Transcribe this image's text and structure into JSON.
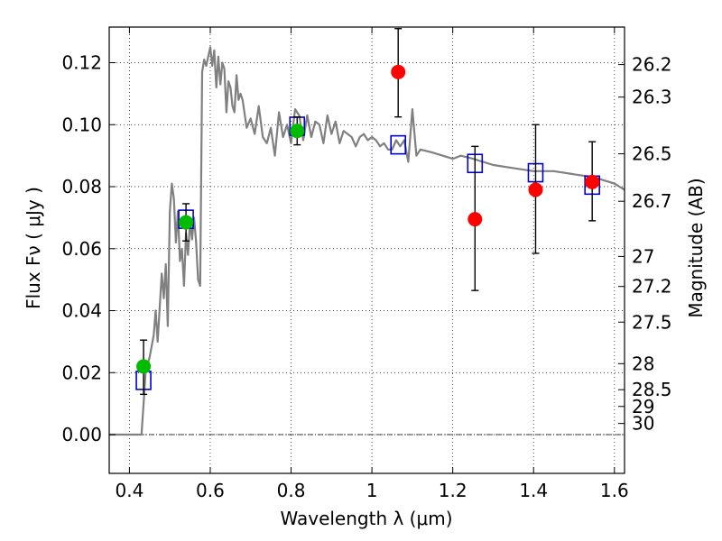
{
  "chart_data": {
    "type": "scatter",
    "title": "",
    "xlabel": "Wavelength  λ (μm)",
    "ylabel": "Flux  Fν  ( μJy )",
    "y2label": "Magnitude (AB)",
    "xlim": [
      0.35,
      1.625
    ],
    "ylim": [
      -0.0125,
      0.1315
    ],
    "grid": true,
    "x_ticks": [
      0.4,
      0.6,
      0.8,
      1.0,
      1.2,
      1.4,
      1.6
    ],
    "x_tick_labels": [
      "0.4",
      "0.6",
      "0.8",
      "1",
      "1.2",
      "1.4",
      "1.6"
    ],
    "y_ticks": [
      0.0,
      0.02,
      0.04,
      0.06,
      0.08,
      0.1,
      0.12
    ],
    "y_tick_labels": [
      "0.00",
      "0.02",
      "0.04",
      "0.06",
      "0.08",
      "0.10",
      "0.12"
    ],
    "mag_ticks": [
      {
        "label": "26.2",
        "flux": 0.1194
      },
      {
        "label": "26.3",
        "flux": 0.1089
      },
      {
        "label": "26.5",
        "flux": 0.0906
      },
      {
        "label": "26.7",
        "flux": 0.0753
      },
      {
        "label": "27",
        "flux": 0.0575
      },
      {
        "label": "27.2",
        "flux": 0.0478
      },
      {
        "label": "27.5",
        "flux": 0.0363
      },
      {
        "label": "28",
        "flux": 0.0229
      },
      {
        "label": "28.5",
        "flux": 0.0145
      },
      {
        "label": "29",
        "flux": 0.0091
      },
      {
        "label": "30",
        "flux": 0.0036
      }
    ],
    "colors": {
      "model": "#808080",
      "model_flux": "#0000cc",
      "green_points": "#00bb00",
      "red_points": "#ff0000",
      "errorbars": "#000000"
    },
    "series": [
      {
        "type": "line",
        "x": [
          0.35,
          0.43,
          0.435,
          0.44,
          0.45,
          0.46,
          0.465,
          0.47,
          0.48,
          0.485,
          0.49,
          0.495,
          0.5,
          0.505,
          0.51,
          0.515,
          0.52,
          0.525,
          0.53,
          0.535,
          0.54,
          0.545,
          0.55,
          0.555,
          0.56,
          0.565,
          0.57,
          0.575,
          0.58,
          0.585,
          0.59,
          0.6,
          0.605,
          0.61,
          0.615,
          0.62,
          0.625,
          0.63,
          0.635,
          0.64,
          0.645,
          0.65,
          0.655,
          0.66,
          0.665,
          0.67,
          0.675,
          0.68,
          0.69,
          0.7,
          0.71,
          0.72,
          0.73,
          0.74,
          0.75,
          0.76,
          0.77,
          0.78,
          0.79,
          0.8,
          0.81,
          0.82,
          0.83,
          0.84,
          0.85,
          0.86,
          0.87,
          0.88,
          0.89,
          0.9,
          0.91,
          0.92,
          0.93,
          0.94,
          0.95,
          0.96,
          0.97,
          0.98,
          0.99,
          1.0,
          1.01,
          1.02,
          1.03,
          1.04,
          1.05,
          1.06,
          1.07,
          1.08,
          1.09,
          1.1,
          1.11,
          1.12,
          1.15,
          1.2,
          1.22,
          1.25,
          1.3,
          1.35,
          1.4,
          1.45,
          1.5,
          1.55,
          1.6,
          1.625
        ],
        "y": [
          0.0,
          0.0,
          0.01,
          0.02,
          0.025,
          0.032,
          0.04,
          0.03,
          0.052,
          0.044,
          0.055,
          0.035,
          0.072,
          0.081,
          0.076,
          0.062,
          0.072,
          0.056,
          0.06,
          0.048,
          0.065,
          0.058,
          0.069,
          0.063,
          0.07,
          0.062,
          0.05,
          0.048,
          0.117,
          0.121,
          0.119,
          0.125,
          0.119,
          0.124,
          0.112,
          0.122,
          0.113,
          0.12,
          0.118,
          0.104,
          0.114,
          0.112,
          0.106,
          0.104,
          0.116,
          0.108,
          0.11,
          0.108,
          0.099,
          0.102,
          0.097,
          0.106,
          0.096,
          0.094,
          0.099,
          0.09,
          0.104,
          0.096,
          0.1,
          0.094,
          0.105,
          0.103,
          0.095,
          0.103,
          0.096,
          0.101,
          0.1,
          0.094,
          0.103,
          0.097,
          0.101,
          0.094,
          0.098,
          0.097,
          0.096,
          0.093,
          0.096,
          0.097,
          0.095,
          0.096,
          0.095,
          0.093,
          0.094,
          0.092,
          0.092,
          0.095,
          0.093,
          0.095,
          0.088,
          0.105,
          0.09,
          0.092,
          0.091,
          0.089,
          0.09,
          0.089,
          0.087,
          0.086,
          0.085,
          0.085,
          0.084,
          0.083,
          0.081,
          0.079
        ]
      },
      {
        "type": "model_flux",
        "x": [
          0.435,
          0.54,
          0.815,
          1.065,
          1.255,
          1.405,
          1.545
        ],
        "y": [
          0.0175,
          0.0695,
          0.0995,
          0.0935,
          0.0875,
          0.0845,
          0.0805
        ]
      },
      {
        "type": "points_green",
        "x": [
          0.435,
          0.54,
          0.815
        ],
        "y": [
          0.022,
          0.0685,
          0.098
        ],
        "yerr_low": [
          0.013,
          0.0625,
          0.0935
        ],
        "yerr_high": [
          0.0305,
          0.0745,
          0.1025
        ]
      },
      {
        "type": "points_red",
        "x": [
          1.065,
          1.255,
          1.405,
          1.545
        ],
        "y": [
          0.117,
          0.0695,
          0.079,
          0.0815
        ],
        "yerr_low": [
          0.1025,
          0.0465,
          0.0585,
          0.069
        ],
        "yerr_high": [
          0.131,
          0.093,
          0.1,
          0.0945
        ]
      }
    ]
  }
}
